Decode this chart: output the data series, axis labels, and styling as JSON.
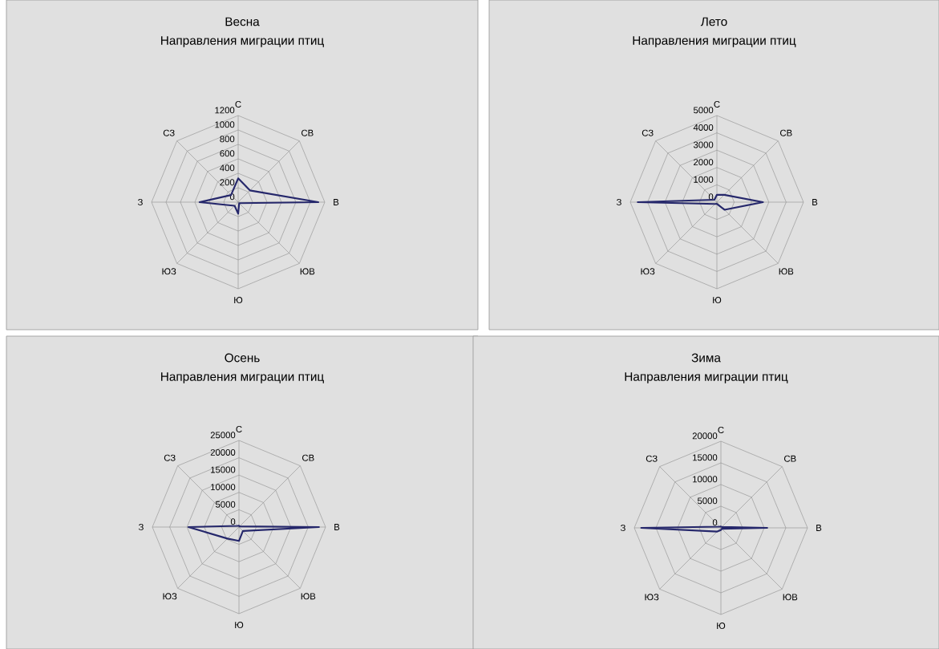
{
  "chart_data": [
    {
      "type": "radar",
      "title": "Весна",
      "subtitle": "Направления миграции птиц",
      "categories": [
        "С",
        "СВ",
        "В",
        "ЮВ",
        "Ю",
        "ЮЗ",
        "З",
        "СЗ"
      ],
      "grid": true,
      "ylim": [
        0,
        1200
      ],
      "yticks": [
        0,
        200,
        400,
        600,
        800,
        1000,
        1200
      ],
      "series": [
        {
          "color": "#25276b",
          "values": [
            330,
            230,
            1110,
            20,
            160,
            70,
            535,
            140
          ]
        }
      ]
    },
    {
      "type": "radar",
      "title": "Лето",
      "subtitle": "Направления миграции птиц",
      "categories": [
        "С",
        "СВ",
        "В",
        "ЮВ",
        "Ю",
        "ЮЗ",
        "З",
        "СЗ"
      ],
      "grid": true,
      "ylim": [
        0,
        5000
      ],
      "yticks": [
        0,
        1000,
        2000,
        3000,
        4000,
        5000
      ],
      "series": [
        {
          "color": "#25276b",
          "values": [
            430,
            600,
            2660,
            620,
            100,
            150,
            4570,
            200
          ]
        }
      ]
    },
    {
      "type": "radar",
      "title": "Осень",
      "subtitle": "Направления миграции птиц",
      "categories": [
        "С",
        "СВ",
        "В",
        "ЮВ",
        "Ю",
        "ЮЗ",
        "З",
        "СЗ"
      ],
      "grid": true,
      "ylim": [
        0,
        25000
      ],
      "yticks": [
        0,
        5000,
        10000,
        15000,
        20000,
        25000
      ],
      "series": [
        {
          "color": "#25276b",
          "values": [
            400,
            300,
            23100,
            1600,
            4000,
            4700,
            14600,
            500
          ]
        }
      ]
    },
    {
      "type": "radar",
      "title": "Зима",
      "subtitle": "Направления миграции птиц",
      "categories": [
        "С",
        "СВ",
        "В",
        "ЮВ",
        "Ю",
        "ЮЗ",
        "З",
        "СЗ"
      ],
      "grid": true,
      "ylim": [
        0,
        20000
      ],
      "yticks": [
        0,
        5000,
        10000,
        15000,
        20000
      ],
      "series": [
        {
          "color": "#25276b",
          "values": [
            300,
            300,
            10700,
            300,
            500,
            1200,
            18400,
            400
          ]
        }
      ]
    }
  ]
}
